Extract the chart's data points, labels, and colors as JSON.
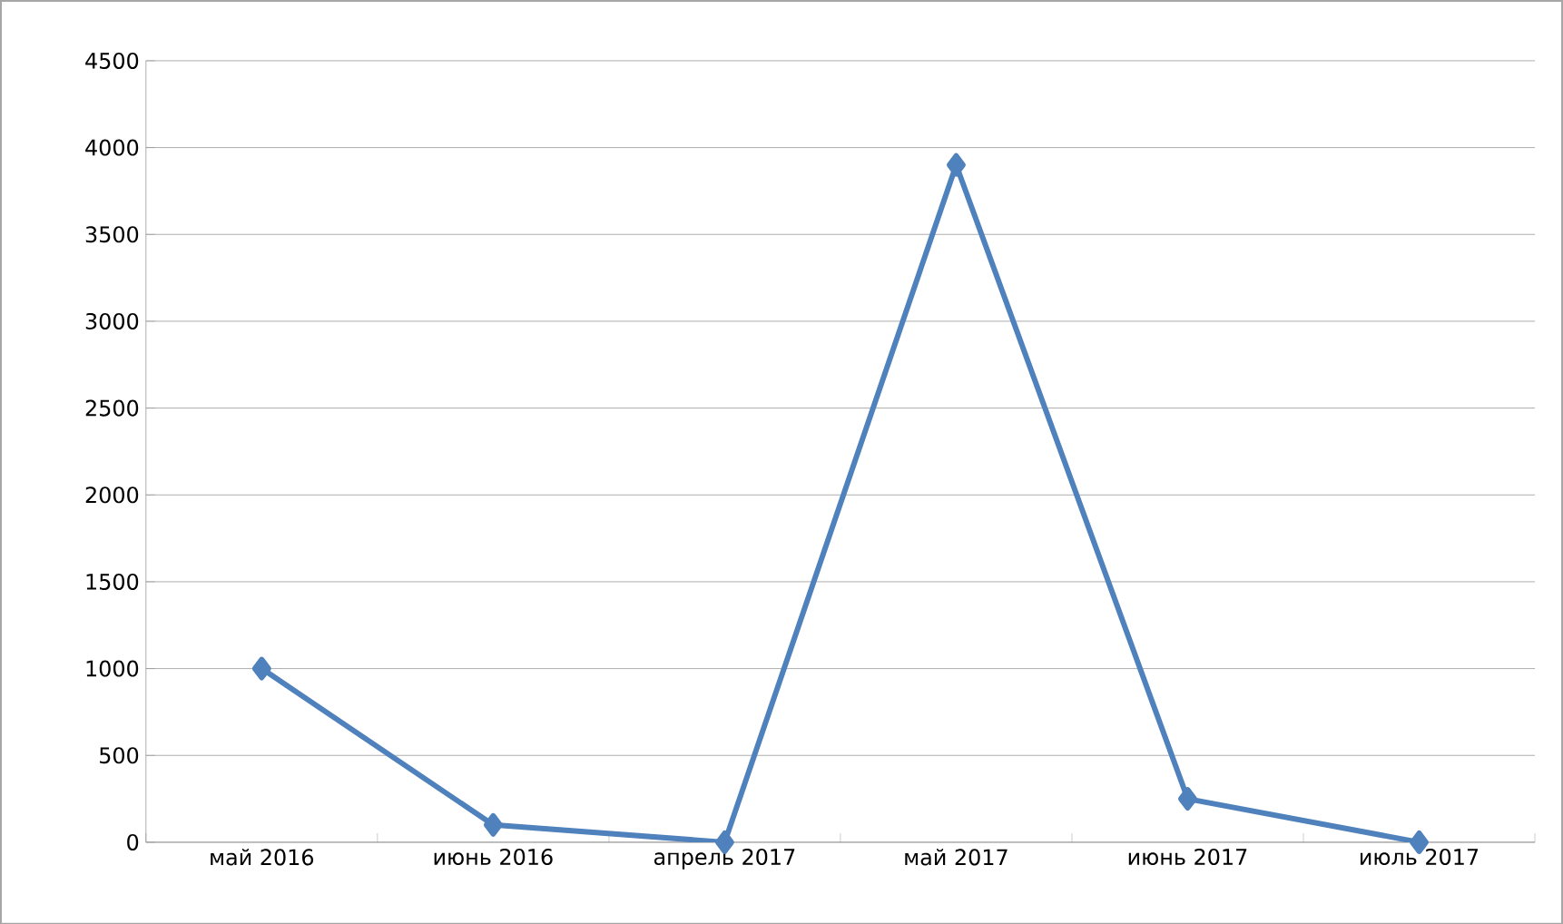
{
  "chart_data": {
    "type": "line",
    "categories": [
      "май 2016",
      "июнь 2016",
      "апрель 2017",
      "май 2017",
      "июнь 2017",
      "июль 2017"
    ],
    "series": [
      {
        "color": "#4f81bd",
        "values": [
          1000,
          100,
          0,
          3900,
          250,
          0
        ]
      }
    ],
    "ylim": [
      0,
      4500
    ],
    "yticks": [
      0,
      500,
      1000,
      1500,
      2000,
      2500,
      3000,
      3500,
      4000,
      4500
    ],
    "grid": "y",
    "marker": "diamond",
    "line_style": "solid"
  }
}
